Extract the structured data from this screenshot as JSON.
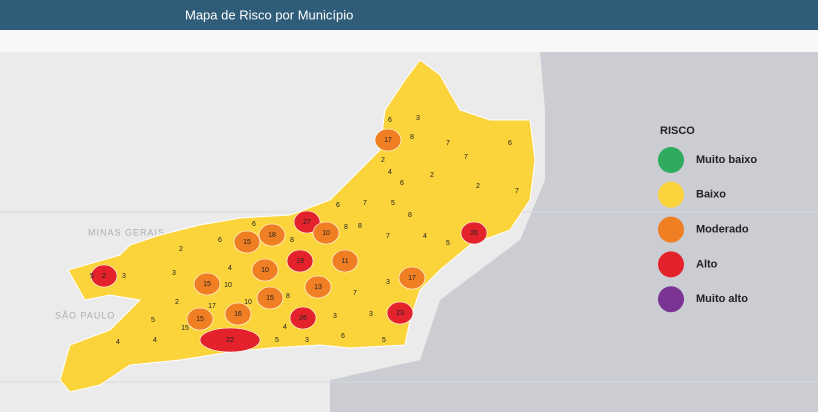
{
  "header": {
    "title": "Mapa de Risco por Município"
  },
  "legend": {
    "title": "RISCO",
    "items": [
      {
        "label": "Muito baixo",
        "color": "#2eab5e"
      },
      {
        "label": "Baixo",
        "color": "#fbd33b"
      },
      {
        "label": "Moderado",
        "color": "#ef7f22"
      },
      {
        "label": "Alto",
        "color": "#e3222b"
      },
      {
        "label": "Muito alto",
        "color": "#7b3494"
      }
    ]
  },
  "map": {
    "region_labels": [
      "MINAS GERAIS",
      "SÃO PAULO"
    ],
    "municipality_values": [
      "6",
      "3",
      "17",
      "8",
      "7",
      "6",
      "2",
      "7",
      "4",
      "2",
      "6",
      "2",
      "7",
      "6",
      "7",
      "5",
      "8",
      "27",
      "6",
      "18",
      "10",
      "8",
      "8",
      "7",
      "4",
      "5",
      "26",
      "2",
      "6",
      "15",
      "8",
      "19",
      "11",
      "5",
      "2",
      "3",
      "3",
      "4",
      "10",
      "13",
      "7",
      "17",
      "3",
      "15",
      "10",
      "15",
      "8",
      "10",
      "2",
      "15",
      "17",
      "16",
      "26",
      "23",
      "3",
      "3",
      "5",
      "15",
      "22",
      "4",
      "5",
      "3",
      "6",
      "5",
      "4",
      "4"
    ]
  }
}
